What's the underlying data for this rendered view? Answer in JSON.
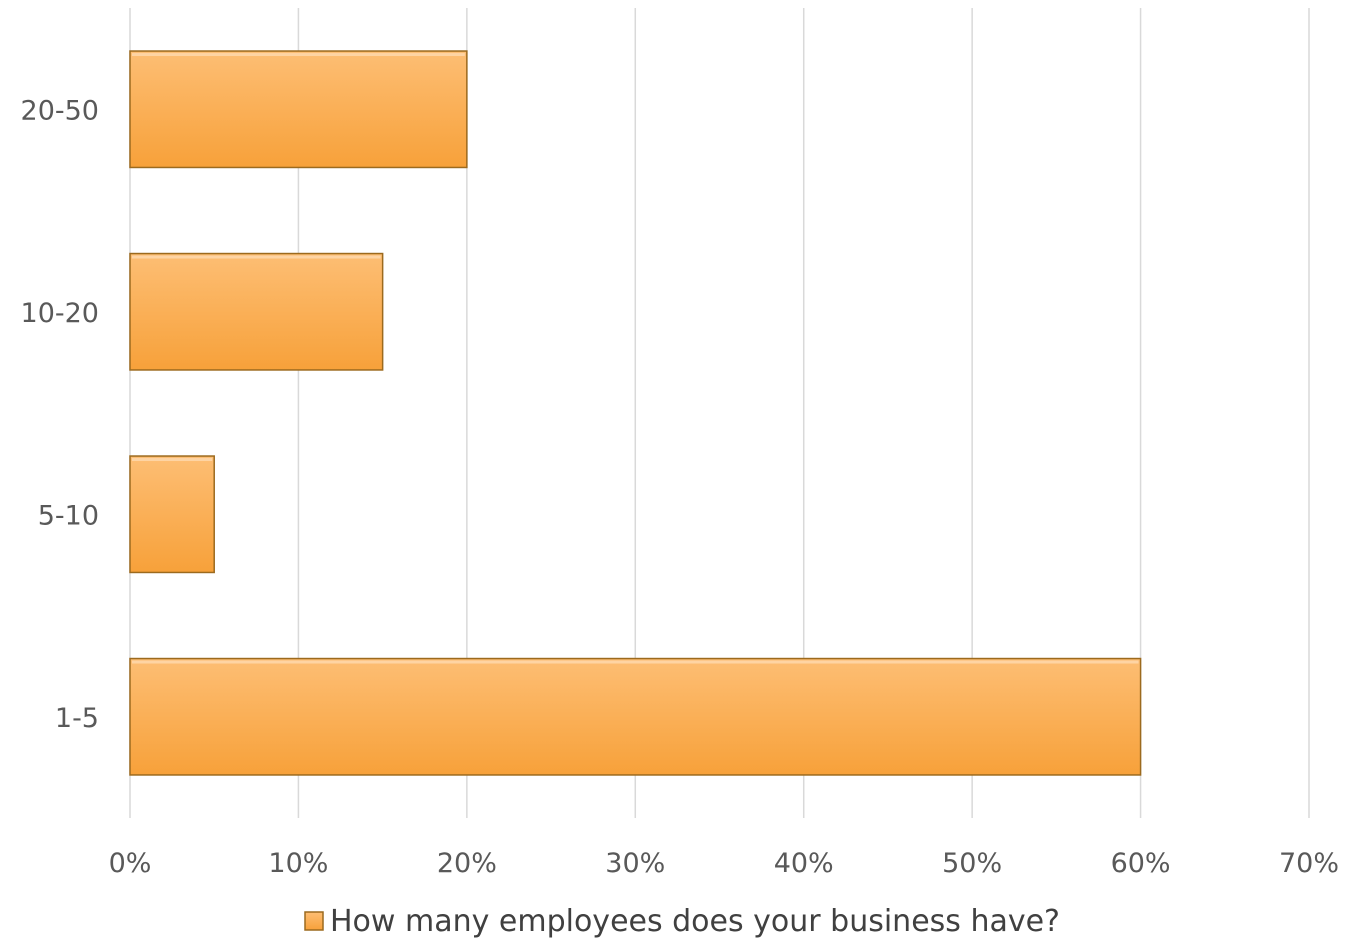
{
  "chart_data": {
    "type": "bar",
    "orientation": "horizontal",
    "categories": [
      "1-5",
      "5-10",
      "10-20",
      "20-50"
    ],
    "series": [
      {
        "name": "How many employees does your business have?",
        "values": [
          0.6,
          0.05,
          0.15,
          0.2
        ],
        "color": "#f9a03c"
      }
    ],
    "xlim": [
      0,
      0.7
    ],
    "x_ticks": [
      "0%",
      "10%",
      "20%",
      "30%",
      "40%",
      "50%",
      "60%",
      "70%"
    ],
    "grid": true,
    "legend_position": "bottom",
    "title": "",
    "xlabel": "",
    "ylabel": ""
  },
  "colors": {
    "bar_fill_light": "#fdbe74",
    "bar_fill_dark": "#f7a13a",
    "bar_edge": "#9c6a1e",
    "grid": "#d9d9d9",
    "text": "#595959"
  }
}
